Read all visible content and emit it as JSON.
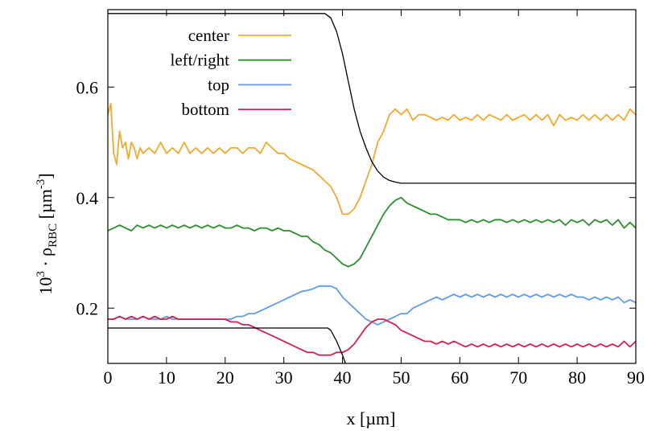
{
  "chart_data": {
    "type": "line",
    "title": "",
    "xlabel": "x [µm]",
    "ylabel": {
      "prefix": "10",
      "prefix_exp": "3",
      "dot": " · ρ",
      "sub": "RBC",
      "unit": " [µm",
      "unit_exp": "-3",
      "close": "]"
    },
    "xlim": [
      0,
      90
    ],
    "ylim": [
      0.1,
      0.74
    ],
    "xticks": [
      0,
      10,
      20,
      30,
      40,
      50,
      60,
      70,
      80,
      90
    ],
    "yticks": [
      0.2,
      0.4,
      0.6
    ],
    "xtick_labels": [
      "0",
      "10",
      "20",
      "30",
      "40",
      "50",
      "60",
      "70",
      "80",
      "90"
    ],
    "ytick_labels": [
      "0.2",
      "0.4",
      "0.6"
    ],
    "grid": false,
    "legend_position": "top-left",
    "series": [
      {
        "name": "center",
        "color": "#f2a92c",
        "x": [
          0,
          0.5,
          1,
          1.5,
          2,
          2.5,
          3,
          3.5,
          4,
          4.5,
          5,
          5.5,
          6,
          7,
          8,
          9,
          10,
          11,
          12,
          13,
          14,
          15,
          16,
          17,
          18,
          19,
          20,
          21,
          22,
          23,
          24,
          25,
          26,
          27,
          28,
          29,
          30,
          31,
          32,
          33,
          34,
          35,
          36,
          37,
          38,
          39,
          40,
          41,
          42,
          43,
          44,
          45,
          46,
          47,
          48,
          49,
          50,
          51,
          52,
          53,
          54,
          55,
          56,
          57,
          58,
          59,
          60,
          61,
          62,
          63,
          64,
          65,
          66,
          67,
          68,
          69,
          70,
          71,
          72,
          73,
          74,
          75,
          76,
          77,
          78,
          79,
          80,
          81,
          82,
          83,
          84,
          85,
          86,
          87,
          88,
          89,
          90
        ],
        "values": [
          0.55,
          0.57,
          0.48,
          0.46,
          0.52,
          0.49,
          0.5,
          0.47,
          0.5,
          0.49,
          0.47,
          0.49,
          0.48,
          0.49,
          0.48,
          0.5,
          0.48,
          0.49,
          0.48,
          0.5,
          0.48,
          0.49,
          0.48,
          0.49,
          0.48,
          0.49,
          0.48,
          0.49,
          0.49,
          0.48,
          0.49,
          0.49,
          0.48,
          0.5,
          0.49,
          0.48,
          0.48,
          0.47,
          0.465,
          0.46,
          0.455,
          0.45,
          0.44,
          0.43,
          0.42,
          0.4,
          0.37,
          0.37,
          0.38,
          0.4,
          0.43,
          0.46,
          0.5,
          0.52,
          0.55,
          0.56,
          0.55,
          0.56,
          0.54,
          0.55,
          0.55,
          0.545,
          0.54,
          0.545,
          0.54,
          0.55,
          0.54,
          0.545,
          0.54,
          0.55,
          0.54,
          0.55,
          0.545,
          0.54,
          0.55,
          0.54,
          0.545,
          0.55,
          0.54,
          0.55,
          0.54,
          0.55,
          0.53,
          0.55,
          0.54,
          0.545,
          0.54,
          0.55,
          0.54,
          0.55,
          0.54,
          0.55,
          0.54,
          0.55,
          0.54,
          0.56,
          0.55
        ]
      },
      {
        "name": "left/right",
        "color": "#2f8f2f",
        "x": [
          0,
          1,
          2,
          3,
          4,
          5,
          6,
          7,
          8,
          9,
          10,
          11,
          12,
          13,
          14,
          15,
          16,
          17,
          18,
          19,
          20,
          21,
          22,
          23,
          24,
          25,
          26,
          27,
          28,
          29,
          30,
          31,
          32,
          33,
          34,
          35,
          36,
          37,
          38,
          39,
          40,
          41,
          42,
          43,
          44,
          45,
          46,
          47,
          48,
          49,
          50,
          51,
          52,
          53,
          54,
          55,
          56,
          57,
          58,
          59,
          60,
          61,
          62,
          63,
          64,
          65,
          66,
          67,
          68,
          69,
          70,
          71,
          72,
          73,
          74,
          75,
          76,
          77,
          78,
          79,
          80,
          81,
          82,
          83,
          84,
          85,
          86,
          87,
          88,
          89,
          90
        ],
        "values": [
          0.34,
          0.345,
          0.35,
          0.345,
          0.34,
          0.35,
          0.345,
          0.35,
          0.345,
          0.35,
          0.345,
          0.35,
          0.345,
          0.35,
          0.345,
          0.35,
          0.345,
          0.35,
          0.345,
          0.35,
          0.345,
          0.345,
          0.35,
          0.345,
          0.345,
          0.34,
          0.345,
          0.345,
          0.34,
          0.345,
          0.34,
          0.34,
          0.335,
          0.33,
          0.33,
          0.32,
          0.315,
          0.305,
          0.3,
          0.29,
          0.28,
          0.275,
          0.28,
          0.29,
          0.31,
          0.33,
          0.35,
          0.37,
          0.385,
          0.395,
          0.4,
          0.39,
          0.385,
          0.38,
          0.375,
          0.37,
          0.37,
          0.365,
          0.36,
          0.36,
          0.36,
          0.355,
          0.36,
          0.355,
          0.36,
          0.355,
          0.36,
          0.36,
          0.355,
          0.36,
          0.355,
          0.36,
          0.355,
          0.36,
          0.355,
          0.36,
          0.355,
          0.36,
          0.35,
          0.36,
          0.355,
          0.36,
          0.35,
          0.36,
          0.355,
          0.36,
          0.35,
          0.36,
          0.345,
          0.355,
          0.345
        ]
      },
      {
        "name": "top",
        "color": "#5f9ee6",
        "x": [
          0,
          1,
          2,
          3,
          4,
          5,
          6,
          7,
          8,
          9,
          10,
          11,
          12,
          13,
          14,
          15,
          16,
          17,
          18,
          19,
          20,
          21,
          22,
          23,
          24,
          25,
          26,
          27,
          28,
          29,
          30,
          31,
          32,
          33,
          34,
          35,
          36,
          37,
          38,
          39,
          40,
          41,
          42,
          43,
          44,
          45,
          46,
          47,
          48,
          49,
          50,
          51,
          52,
          53,
          54,
          55,
          56,
          57,
          58,
          59,
          60,
          61,
          62,
          63,
          64,
          65,
          66,
          67,
          68,
          69,
          70,
          71,
          72,
          73,
          74,
          75,
          76,
          77,
          78,
          79,
          80,
          81,
          82,
          83,
          84,
          85,
          86,
          87,
          88,
          89,
          90
        ],
        "values": [
          0.18,
          0.18,
          0.185,
          0.18,
          0.18,
          0.18,
          0.185,
          0.18,
          0.18,
          0.18,
          0.185,
          0.18,
          0.18,
          0.18,
          0.18,
          0.18,
          0.18,
          0.18,
          0.18,
          0.18,
          0.18,
          0.18,
          0.185,
          0.185,
          0.19,
          0.19,
          0.195,
          0.2,
          0.205,
          0.21,
          0.215,
          0.22,
          0.225,
          0.23,
          0.232,
          0.235,
          0.24,
          0.24,
          0.24,
          0.235,
          0.22,
          0.21,
          0.2,
          0.19,
          0.18,
          0.175,
          0.17,
          0.175,
          0.18,
          0.185,
          0.19,
          0.19,
          0.2,
          0.205,
          0.21,
          0.215,
          0.22,
          0.215,
          0.22,
          0.225,
          0.22,
          0.225,
          0.22,
          0.225,
          0.22,
          0.225,
          0.22,
          0.225,
          0.22,
          0.225,
          0.22,
          0.225,
          0.22,
          0.225,
          0.22,
          0.225,
          0.22,
          0.225,
          0.22,
          0.225,
          0.22,
          0.22,
          0.215,
          0.22,
          0.215,
          0.22,
          0.215,
          0.22,
          0.21,
          0.215,
          0.21
        ]
      },
      {
        "name": "bottom",
        "color": "#d62050",
        "x": [
          0,
          1,
          2,
          3,
          4,
          5,
          6,
          7,
          8,
          9,
          10,
          11,
          12,
          13,
          14,
          15,
          16,
          17,
          18,
          19,
          20,
          21,
          22,
          23,
          24,
          25,
          26,
          27,
          28,
          29,
          30,
          31,
          32,
          33,
          34,
          35,
          36,
          37,
          38,
          39,
          40,
          41,
          42,
          43,
          44,
          45,
          46,
          47,
          48,
          49,
          50,
          51,
          52,
          53,
          54,
          55,
          56,
          57,
          58,
          59,
          60,
          61,
          62,
          63,
          64,
          65,
          66,
          67,
          68,
          69,
          70,
          71,
          72,
          73,
          74,
          75,
          76,
          77,
          78,
          79,
          80,
          81,
          82,
          83,
          84,
          85,
          86,
          87,
          88,
          89,
          90
        ],
        "values": [
          0.18,
          0.18,
          0.185,
          0.18,
          0.185,
          0.18,
          0.185,
          0.18,
          0.185,
          0.18,
          0.18,
          0.185,
          0.18,
          0.18,
          0.18,
          0.18,
          0.18,
          0.18,
          0.18,
          0.18,
          0.18,
          0.175,
          0.175,
          0.17,
          0.17,
          0.165,
          0.16,
          0.155,
          0.15,
          0.145,
          0.14,
          0.135,
          0.13,
          0.125,
          0.12,
          0.12,
          0.115,
          0.115,
          0.115,
          0.12,
          0.12,
          0.125,
          0.135,
          0.15,
          0.165,
          0.175,
          0.18,
          0.18,
          0.175,
          0.17,
          0.16,
          0.155,
          0.15,
          0.145,
          0.14,
          0.14,
          0.135,
          0.14,
          0.135,
          0.14,
          0.135,
          0.13,
          0.135,
          0.13,
          0.135,
          0.13,
          0.135,
          0.13,
          0.135,
          0.13,
          0.135,
          0.13,
          0.135,
          0.13,
          0.135,
          0.13,
          0.135,
          0.13,
          0.135,
          0.13,
          0.135,
          0.13,
          0.135,
          0.13,
          0.135,
          0.13,
          0.135,
          0.13,
          0.14,
          0.13,
          0.14
        ]
      },
      {
        "color": "#000000",
        "x": [
          0,
          37,
          38,
          39,
          40,
          41,
          42,
          43,
          44,
          45,
          46,
          47,
          48,
          49,
          50,
          90
        ],
        "values": [
          0.733,
          0.733,
          0.725,
          0.7,
          0.66,
          0.61,
          0.56,
          0.52,
          0.49,
          0.465,
          0.448,
          0.437,
          0.431,
          0.428,
          0.426,
          0.426
        ]
      },
      {
        "color": "#000000",
        "x": [
          0,
          37.5,
          38,
          39,
          40,
          40.5
        ],
        "values": [
          0.164,
          0.164,
          0.16,
          0.14,
          0.115,
          0.1
        ]
      }
    ]
  }
}
